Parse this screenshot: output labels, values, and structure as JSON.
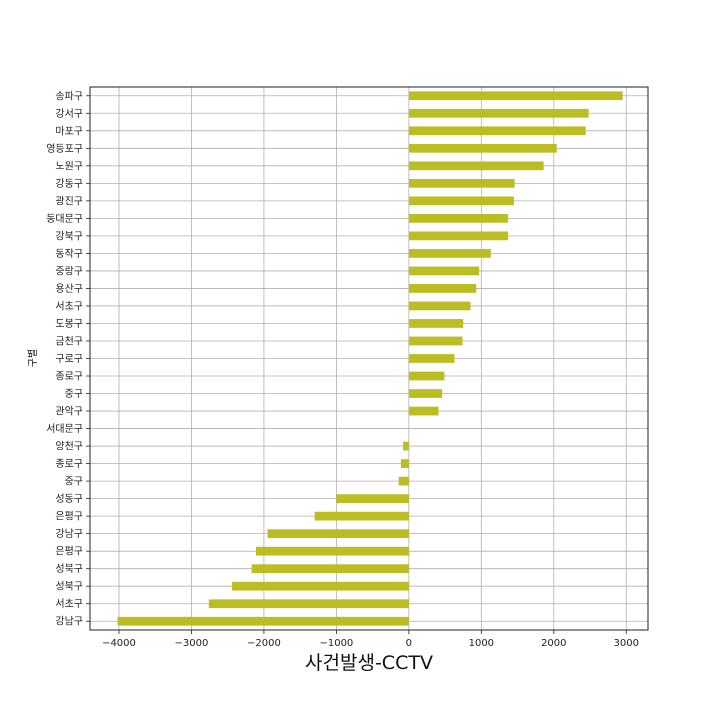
{
  "chart_data": {
    "type": "bar",
    "orientation": "horizontal",
    "xlabel": "사건발생-CCTV",
    "ylabel": "구별",
    "xlim": [
      -4400,
      3300
    ],
    "xticks": [
      -4000,
      -3000,
      -2000,
      -1000,
      0,
      1000,
      2000,
      3000
    ],
    "xtick_labels": [
      "−4000",
      "−3000",
      "−2000",
      "−1000",
      "0",
      "1000",
      "2000",
      "3000"
    ],
    "grid": true,
    "bar_color": "#bcbd22",
    "categories": [
      "송파구",
      "강서구",
      "마포구",
      "영등포구",
      "노원구",
      "강동구",
      "광진구",
      "동대문구",
      "강북구",
      "동작구",
      "중랑구",
      "용산구",
      "서초구",
      "도봉구",
      "금천구",
      "구로구",
      "종로구",
      "중구",
      "관악구",
      "서대문구",
      "양천구",
      "종로구",
      "중구",
      "성동구",
      "은평구",
      "강남구",
      "은평구",
      "성북구",
      "성북구",
      "서초구",
      "강남구"
    ],
    "values": [
      2950,
      2480,
      2440,
      2040,
      1860,
      1460,
      1450,
      1370,
      1370,
      1130,
      970,
      930,
      850,
      750,
      740,
      630,
      490,
      460,
      410,
      0,
      -80,
      -110,
      -140,
      -1000,
      -1300,
      -1950,
      -2110,
      -2170,
      -2440,
      -2760,
      -4020
    ]
  }
}
